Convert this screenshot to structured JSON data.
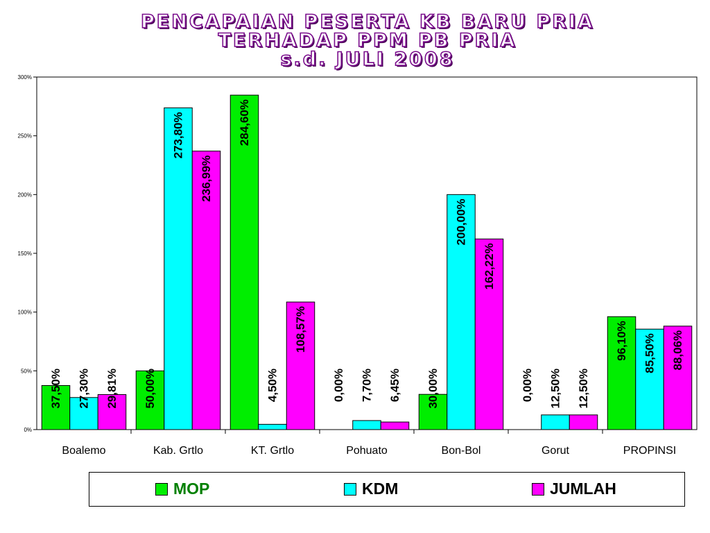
{
  "title_lines": [
    "PENCAPAIAN PESERTA KB BARU  PRIA",
    "TERHADAP  PPM PB PRIA",
    "s.d.  JULI 2008"
  ],
  "colors": {
    "MOP": "#00ee00",
    "KDM": "#00ffff",
    "JUMLAH": "#ff00ff",
    "title_outline": "#7a0d8c"
  },
  "chart_data": {
    "type": "bar",
    "categories": [
      "Boalemo",
      "Kab. Grtlo",
      "KT. Grtlo",
      "Pohuato",
      "Bon-Bol",
      "Gorut",
      "PROPINSI"
    ],
    "series": [
      {
        "name": "MOP",
        "values": [
          37.5,
          50.0,
          284.6,
          0.0,
          30.0,
          0.0,
          96.1
        ],
        "labels": [
          "37,50%",
          "50,00%",
          "284,60%",
          "0,00%",
          "30,00%",
          "0,00%",
          "96,10%"
        ]
      },
      {
        "name": "KDM",
        "values": [
          27.3,
          273.8,
          4.5,
          7.7,
          200.0,
          12.5,
          85.5
        ],
        "labels": [
          "27,30%",
          "273,80%",
          "4,50%",
          "7,70%",
          "200,00%",
          "12,50%",
          "85,50%"
        ]
      },
      {
        "name": "JUMLAH",
        "values": [
          29.81,
          236.99,
          108.57,
          6.45,
          162.22,
          12.5,
          88.06
        ],
        "labels": [
          "29,81%",
          "236,99%",
          "108,57%",
          "6,45%",
          "162,22%",
          "12,50%",
          "88,06%"
        ]
      }
    ],
    "ylim": [
      0,
      300
    ],
    "yticks": [
      0,
      50,
      100,
      150,
      200,
      250,
      300
    ],
    "ytick_labels": [
      "0%",
      "50%",
      "100%",
      "150%",
      "200%",
      "250%",
      "300%"
    ],
    "grid": false,
    "legend_position": "bottom"
  }
}
